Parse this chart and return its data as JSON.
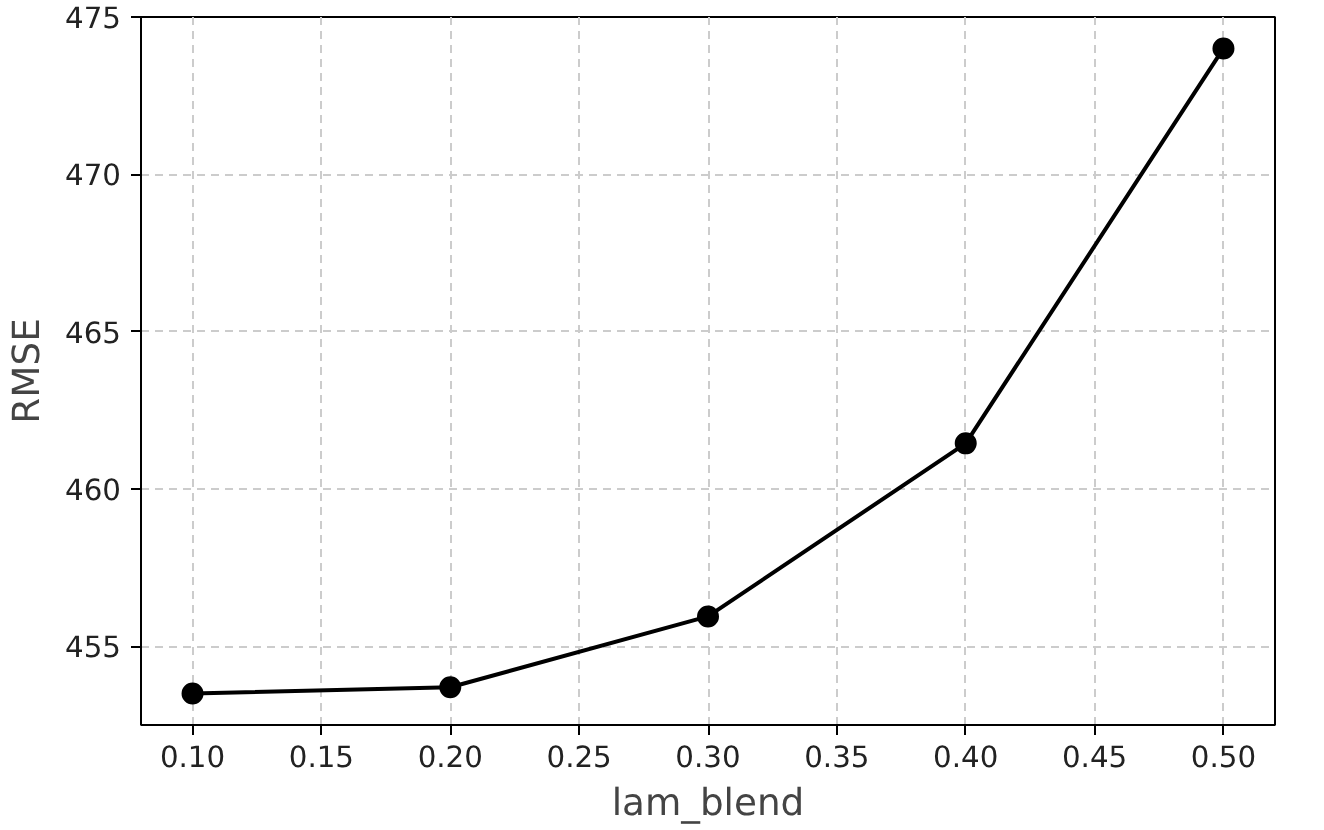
{
  "chart_data": {
    "type": "line",
    "xlabel": "lam_blend",
    "ylabel": "RMSE",
    "x": [
      0.1,
      0.2,
      0.3,
      0.4,
      0.5
    ],
    "series": [
      {
        "color": "#000000",
        "values": [
          453.5,
          453.7,
          455.95,
          461.45,
          474.0
        ]
      }
    ],
    "xlim": [
      0.08,
      0.52
    ],
    "ylim": [
      452.5,
      475
    ],
    "xticks": [
      {
        "value": 0.1,
        "label": "0.10"
      },
      {
        "value": 0.15,
        "label": "0.15"
      },
      {
        "value": 0.2,
        "label": "0.20"
      },
      {
        "value": 0.25,
        "label": "0.25"
      },
      {
        "value": 0.3,
        "label": "0.30"
      },
      {
        "value": 0.35,
        "label": "0.35"
      },
      {
        "value": 0.4,
        "label": "0.40"
      },
      {
        "value": 0.45,
        "label": "0.45"
      },
      {
        "value": 0.5,
        "label": "0.50"
      }
    ],
    "yticks": [
      455,
      460,
      465,
      470,
      475
    ],
    "grid": true,
    "marker": "circle",
    "line_style": "solid"
  }
}
